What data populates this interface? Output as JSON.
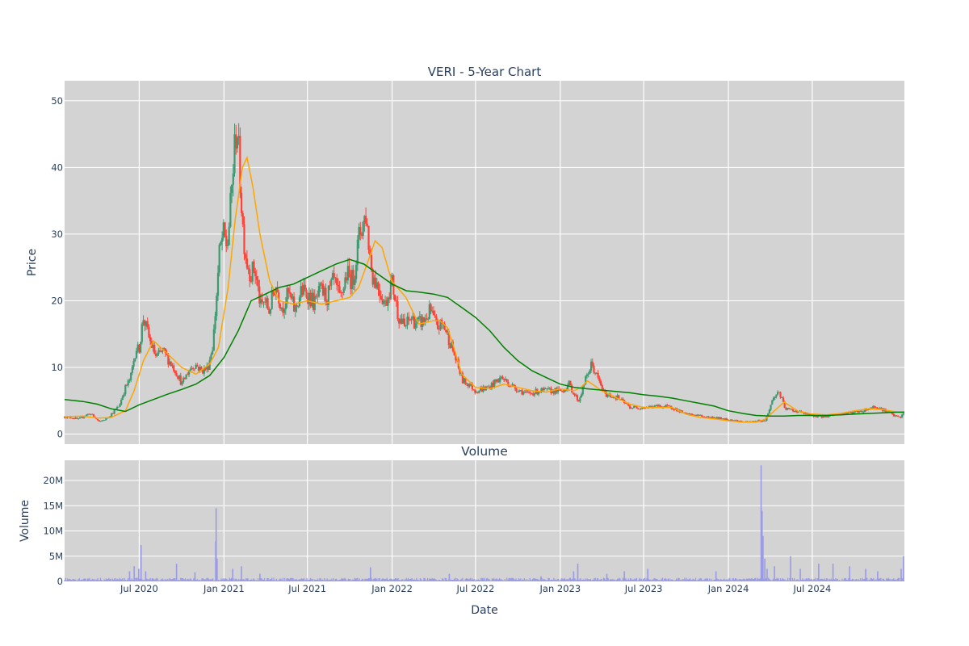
{
  "chart_data": [
    {
      "type": "candlestick",
      "title": "VERI - 5-Year Chart",
      "ylabel": "Price",
      "ylim": [
        -1.5,
        53
      ],
      "xlim": [
        "2020-01-21",
        "2025-01-17"
      ],
      "yticks": [
        0,
        10,
        20,
        30,
        40,
        50
      ],
      "grid": true,
      "candle_colors": {
        "up": "#3d9970",
        "down": "#ff4136"
      },
      "series": [
        {
          "kind": "close",
          "x": [
            "2020-01-21",
            "2020-02-05",
            "2020-02-20",
            "2020-03-06",
            "2020-03-16",
            "2020-03-25",
            "2020-04-06",
            "2020-04-20",
            "2020-05-04",
            "2020-05-18",
            "2020-06-01",
            "2020-06-12",
            "2020-06-24",
            "2020-06-30",
            "2020-07-10",
            "2020-07-24",
            "2020-08-07",
            "2020-08-21",
            "2020-09-04",
            "2020-09-18",
            "2020-10-02",
            "2020-10-16",
            "2020-10-30",
            "2020-11-13",
            "2020-11-27",
            "2020-12-08",
            "2020-12-15",
            "2020-12-22",
            "2020-12-30",
            "2021-01-08",
            "2021-01-15",
            "2021-01-22",
            "2021-01-29",
            "2021-02-05",
            "2021-02-12",
            "2021-02-19",
            "2021-03-01",
            "2021-03-08",
            "2021-03-15",
            "2021-03-22",
            "2021-03-30",
            "2021-04-09",
            "2021-04-23",
            "2021-05-07",
            "2021-05-21",
            "2021-06-04",
            "2021-06-18",
            "2021-07-02",
            "2021-07-16",
            "2021-07-30",
            "2021-08-13",
            "2021-08-27",
            "2021-09-10",
            "2021-09-24",
            "2021-10-08",
            "2021-10-22",
            "2021-11-05",
            "2021-11-12",
            "2021-11-19",
            "2021-12-03",
            "2021-12-17",
            "2021-12-31",
            "2022-01-14",
            "2022-01-28",
            "2022-02-11",
            "2022-02-25",
            "2022-03-11",
            "2022-03-25",
            "2022-04-08",
            "2022-04-22",
            "2022-05-06",
            "2022-05-20",
            "2022-06-03",
            "2022-06-17",
            "2022-07-01",
            "2022-07-29",
            "2022-08-26",
            "2022-09-23",
            "2022-10-21",
            "2022-11-18",
            "2022-12-16",
            "2023-01-06",
            "2023-01-20",
            "2023-01-31",
            "2023-02-10",
            "2023-02-24",
            "2023-03-10",
            "2023-04-07",
            "2023-05-05",
            "2023-06-02",
            "2023-06-30",
            "2023-08-04",
            "2023-09-01",
            "2023-09-29",
            "2023-10-27",
            "2023-11-24",
            "2023-12-22",
            "2024-01-19",
            "2024-02-09",
            "2024-02-23",
            "2024-03-08",
            "2024-03-15",
            "2024-03-22",
            "2024-04-05",
            "2024-04-19",
            "2024-05-03",
            "2024-05-31",
            "2024-06-28",
            "2024-07-26",
            "2024-08-23",
            "2024-09-20",
            "2024-10-18",
            "2024-11-15",
            "2024-12-13",
            "2024-12-27",
            "2025-01-10",
            "2025-01-17"
          ],
          "values": [
            2.6,
            2.5,
            2.2,
            2.8,
            3.1,
            2.6,
            1.8,
            2.3,
            3.2,
            4.2,
            7.0,
            8.3,
            13.0,
            12.5,
            17.5,
            14.0,
            11.5,
            12.5,
            11.0,
            9.5,
            7.5,
            9.5,
            10.5,
            9.5,
            10.0,
            13.5,
            20.0,
            27.0,
            30.0,
            28.0,
            34.0,
            41.0,
            47.0,
            38.0,
            30.0,
            26.0,
            24.0,
            25.0,
            22.0,
            19.0,
            20.0,
            18.5,
            22.5,
            19.0,
            21.0,
            18.5,
            21.5,
            21.0,
            19.5,
            21.5,
            20.5,
            23.0,
            20.0,
            24.0,
            23.0,
            30.0,
            33.0,
            28.0,
            24.0,
            22.0,
            19.5,
            23.0,
            18.0,
            16.0,
            17.5,
            16.5,
            17.0,
            18.5,
            16.0,
            16.5,
            14.0,
            11.0,
            8.0,
            7.5,
            6.5,
            7.0,
            8.5,
            7.0,
            6.0,
            6.5,
            6.5,
            6.5,
            7.5,
            6.0,
            5.0,
            8.0,
            10.5,
            6.0,
            5.5,
            4.0,
            4.0,
            4.2,
            4.0,
            3.0,
            2.8,
            2.5,
            2.3,
            2.0,
            1.8,
            1.9,
            2.0,
            2.0,
            2.1,
            5.0,
            6.5,
            3.8,
            3.4,
            2.8,
            2.6,
            3.0,
            3.2,
            3.5,
            4.2,
            3.3,
            2.7,
            2.5,
            3.6
          ]
        },
        {
          "kind": "sma50",
          "color": "#ffa500",
          "x": [
            "2020-01-21",
            "2020-03-01",
            "2020-04-01",
            "2020-05-01",
            "2020-06-01",
            "2020-06-20",
            "2020-07-10",
            "2020-08-01",
            "2020-09-01",
            "2020-10-01",
            "2020-11-01",
            "2020-12-01",
            "2020-12-20",
            "2021-01-10",
            "2021-01-25",
            "2021-02-10",
            "2021-02-20",
            "2021-03-05",
            "2021-03-20",
            "2021-04-10",
            "2021-05-01",
            "2021-06-01",
            "2021-07-01",
            "2021-08-01",
            "2021-09-01",
            "2021-10-01",
            "2021-10-20",
            "2021-11-10",
            "2021-11-25",
            "2021-12-10",
            "2021-12-31",
            "2022-01-31",
            "2022-02-28",
            "2022-03-31",
            "2022-04-15",
            "2022-05-01",
            "2022-05-15",
            "2022-06-01",
            "2022-07-01",
            "2022-08-01",
            "2022-09-01",
            "2022-10-01",
            "2022-11-01",
            "2022-12-01",
            "2022-12-31",
            "2023-01-31",
            "2023-02-15",
            "2023-03-01",
            "2023-04-01",
            "2023-05-01",
            "2023-06-01",
            "2023-07-01",
            "2023-08-01",
            "2023-09-01",
            "2023-10-01",
            "2023-11-01",
            "2023-12-01",
            "2024-01-01",
            "2024-02-01",
            "2024-03-01",
            "2024-03-20",
            "2024-04-10",
            "2024-05-01",
            "2024-06-01",
            "2024-07-01",
            "2024-08-01",
            "2024-09-01",
            "2024-10-01",
            "2024-11-01",
            "2024-12-01",
            "2025-01-01",
            "2025-01-17"
          ],
          "values": [
            2.6,
            2.7,
            2.4,
            2.5,
            3.5,
            6.5,
            11.0,
            14.0,
            12.0,
            10.0,
            9.0,
            10.5,
            13.0,
            22.0,
            32.0,
            40.0,
            41.5,
            37.0,
            30.0,
            23.0,
            20.0,
            19.5,
            20.0,
            19.5,
            20.0,
            20.5,
            22.0,
            26.0,
            29.0,
            28.0,
            23.0,
            20.5,
            16.5,
            17.0,
            17.0,
            16.0,
            13.0,
            9.0,
            7.0,
            6.8,
            7.5,
            7.0,
            6.5,
            6.3,
            6.8,
            6.5,
            7.0,
            8.0,
            6.5,
            5.5,
            4.5,
            4.0,
            4.0,
            4.0,
            3.0,
            2.5,
            2.3,
            2.0,
            1.8,
            1.8,
            2.2,
            3.5,
            4.8,
            3.4,
            3.0,
            2.9,
            3.1,
            3.5,
            3.8,
            3.7,
            3.3,
            3.2
          ]
        },
        {
          "kind": "sma200",
          "color": "#008000",
          "x": [
            "2020-01-21",
            "2020-03-01",
            "2020-04-01",
            "2020-05-01",
            "2020-06-01",
            "2020-07-01",
            "2020-08-01",
            "2020-09-01",
            "2020-10-01",
            "2020-11-01",
            "2020-12-01",
            "2021-01-01",
            "2021-02-01",
            "2021-03-01",
            "2021-04-01",
            "2021-05-01",
            "2021-06-01",
            "2021-07-01",
            "2021-08-01",
            "2021-09-01",
            "2021-10-01",
            "2021-11-01",
            "2021-12-01",
            "2022-01-01",
            "2022-02-01",
            "2022-03-01",
            "2022-04-01",
            "2022-05-01",
            "2022-06-01",
            "2022-07-01",
            "2022-08-01",
            "2022-09-01",
            "2022-10-01",
            "2022-11-01",
            "2022-12-01",
            "2023-01-01",
            "2023-02-01",
            "2023-03-01",
            "2023-04-01",
            "2023-05-01",
            "2023-06-01",
            "2023-07-01",
            "2023-08-01",
            "2023-09-01",
            "2023-10-01",
            "2023-11-01",
            "2023-12-01",
            "2024-01-01",
            "2024-02-01",
            "2024-03-01",
            "2024-04-01",
            "2024-05-01",
            "2024-06-01",
            "2024-07-01",
            "2024-08-01",
            "2024-09-01",
            "2024-10-01",
            "2024-11-01",
            "2024-12-01",
            "2025-01-01",
            "2025-01-17"
          ],
          "values": [
            5.2,
            4.9,
            4.5,
            3.8,
            3.4,
            4.4,
            5.2,
            6.0,
            6.7,
            7.5,
            8.8,
            11.5,
            15.5,
            20.0,
            21.0,
            22.0,
            22.5,
            23.5,
            24.5,
            25.5,
            26.2,
            25.5,
            24.0,
            22.5,
            21.5,
            21.3,
            21.0,
            20.5,
            19.0,
            17.5,
            15.5,
            13.0,
            11.0,
            9.5,
            8.5,
            7.5,
            7.0,
            6.8,
            6.6,
            6.4,
            6.2,
            5.9,
            5.7,
            5.4,
            5.0,
            4.6,
            4.2,
            3.5,
            3.1,
            2.8,
            2.7,
            2.7,
            2.8,
            2.8,
            2.8,
            2.9,
            3.0,
            3.1,
            3.2,
            3.3,
            3.3
          ]
        }
      ]
    },
    {
      "type": "bar",
      "title": "Volume",
      "xlabel": "Date",
      "ylabel": "Volume",
      "ylim": [
        0,
        24000000
      ],
      "yticks": [
        0,
        5000000,
        10000000,
        15000000,
        20000000
      ],
      "yticklabels": [
        "0",
        "5M",
        "10M",
        "15M",
        "20M"
      ],
      "bar_color": "#9a9ae6",
      "xticks": [
        "2020-07-01",
        "2021-01-01",
        "2021-07-01",
        "2022-01-01",
        "2022-07-01",
        "2023-01-01",
        "2023-07-01",
        "2024-01-01",
        "2024-07-01"
      ],
      "xticklabels": [
        "Jul 2020",
        "Jan 2021",
        "Jul 2021",
        "Jan 2022",
        "Jul 2022",
        "Jan 2023",
        "Jul 2023",
        "Jan 2024",
        "Jul 2024"
      ],
      "baseline": 400000,
      "x": [
        "2020-06-10",
        "2020-06-20",
        "2020-06-30",
        "2020-07-05",
        "2020-07-15",
        "2020-09-20",
        "2020-10-30",
        "2020-12-14",
        "2020-12-15",
        "2020-12-17",
        "2021-01-20",
        "2021-02-08",
        "2021-03-20",
        "2021-11-15",
        "2022-05-05",
        "2022-11-20",
        "2023-01-30",
        "2023-02-08",
        "2023-04-12",
        "2023-05-20",
        "2023-07-10",
        "2023-12-05",
        "2024-03-12",
        "2024-03-14",
        "2024-03-16",
        "2024-03-20",
        "2024-03-25",
        "2024-04-10",
        "2024-05-15",
        "2024-06-05",
        "2024-07-15",
        "2024-08-15",
        "2024-09-20",
        "2024-10-25",
        "2024-11-20",
        "2025-01-10",
        "2025-01-15"
      ],
      "values": [
        2000000,
        3000000,
        2500000,
        7200000,
        2000000,
        3500000,
        1800000,
        8000000,
        14500000,
        4500000,
        2500000,
        3000000,
        1500000,
        2800000,
        1500000,
        1000000,
        2000000,
        3500000,
        1500000,
        2000000,
        2500000,
        2000000,
        23000000,
        14000000,
        9000000,
        4500000,
        2500000,
        3000000,
        5000000,
        2500000,
        3500000,
        3500000,
        3000000,
        2500000,
        2000000,
        2500000,
        5000000
      ]
    }
  ]
}
